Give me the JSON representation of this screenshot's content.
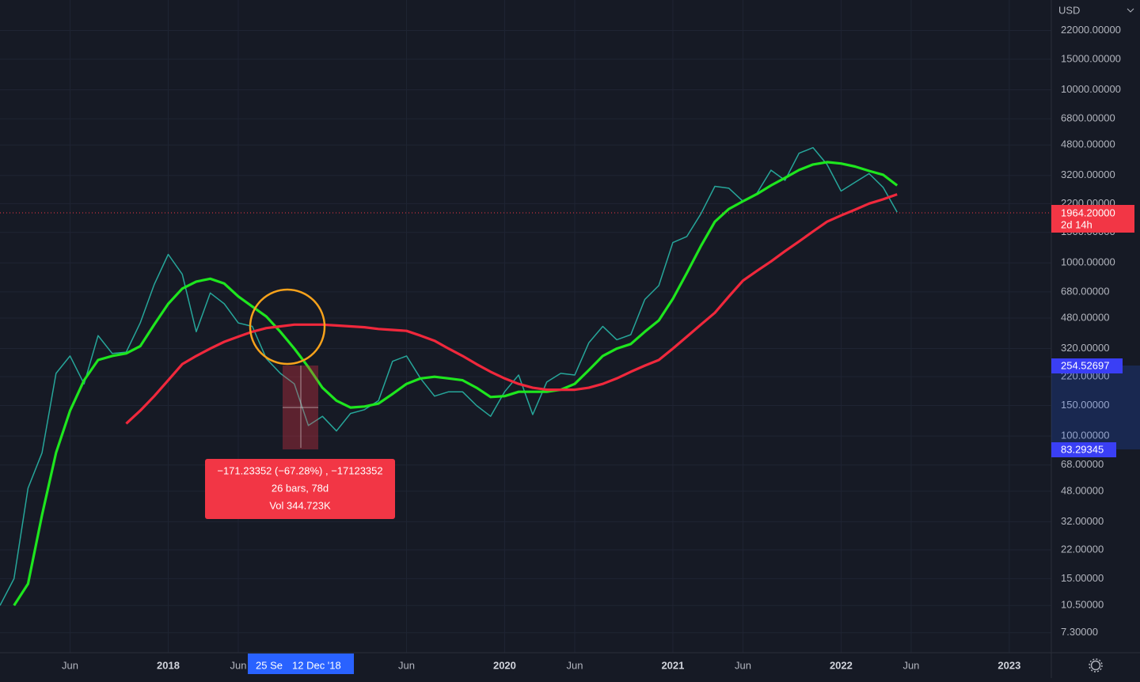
{
  "chart_data": {
    "type": "line",
    "log_scale": true,
    "grid": true,
    "x": [
      "2017-01",
      "2017-02",
      "2017-03",
      "2017-04",
      "2017-05",
      "2017-06",
      "2017-07",
      "2017-08",
      "2017-09",
      "2017-10",
      "2017-11",
      "2017-12",
      "2018-01",
      "2018-02",
      "2018-03",
      "2018-04",
      "2018-05",
      "2018-06",
      "2018-07",
      "2018-08",
      "2018-09",
      "2018-10",
      "2018-11",
      "2018-12",
      "2019-01",
      "2019-02",
      "2019-03",
      "2019-04",
      "2019-05",
      "2019-06",
      "2019-07",
      "2019-08",
      "2019-09",
      "2019-10",
      "2019-11",
      "2019-12",
      "2020-01",
      "2020-02",
      "2020-03",
      "2020-04",
      "2020-05",
      "2020-06",
      "2020-07",
      "2020-08",
      "2020-09",
      "2020-10",
      "2020-11",
      "2020-12",
      "2021-01",
      "2021-02",
      "2021-03",
      "2021-04",
      "2021-05",
      "2021-06",
      "2021-07",
      "2021-08",
      "2021-09",
      "2021-10",
      "2021-11",
      "2021-12",
      "2022-01",
      "2022-02",
      "2022-03",
      "2022-04",
      "2022-05"
    ],
    "series": [
      {
        "color": "#26a69a",
        "values": [
          10.5,
          15,
          50,
          80,
          230,
          290,
          200,
          380,
          300,
          305,
          450,
          750,
          1120,
          860,
          400,
          670,
          580,
          450,
          430,
          280,
          230,
          200,
          115,
          130,
          107,
          135,
          142,
          160,
          270,
          290,
          215,
          170,
          180,
          180,
          150,
          130,
          180,
          225,
          133,
          205,
          230,
          225,
          345,
          430,
          360,
          385,
          615,
          740,
          1310,
          1420,
          1920,
          2770,
          2700,
          2270,
          2530,
          3430,
          3000,
          4300,
          4630,
          3700,
          2600,
          2920,
          3280,
          2730,
          1964
        ]
      },
      {
        "color": "#1ee61e",
        "values": [
          null,
          10.5,
          14,
          35,
          80,
          140,
          210,
          275,
          290,
          300,
          330,
          440,
          580,
          710,
          780,
          810,
          760,
          640,
          560,
          490,
          400,
          320,
          250,
          190,
          160,
          146,
          148,
          154,
          175,
          200,
          215,
          220,
          215,
          210,
          190,
          168,
          170,
          180,
          180,
          180,
          185,
          200,
          240,
          290,
          320,
          340,
          400,
          465,
          620,
          875,
          1250,
          1730,
          2050,
          2270,
          2500,
          2800,
          3100,
          3440,
          3700,
          3820,
          3750,
          3600,
          3400,
          3230,
          2800
        ]
      },
      {
        "color": "#f0283c",
        "values": [
          null,
          null,
          null,
          null,
          null,
          null,
          null,
          null,
          null,
          118,
          140,
          170,
          210,
          260,
          290,
          320,
          350,
          375,
          400,
          420,
          430,
          440,
          440,
          440,
          435,
          430,
          425,
          415,
          410,
          405,
          380,
          355,
          320,
          290,
          260,
          235,
          215,
          200,
          190,
          185,
          185,
          185,
          190,
          200,
          215,
          235,
          255,
          275,
          320,
          375,
          440,
          515,
          640,
          790,
          900,
          1020,
          1170,
          1330,
          1520,
          1730,
          1880,
          2030,
          2200,
          2330,
          2490
        ]
      }
    ],
    "xlim": [
      "2017-01",
      "2023-04"
    ],
    "xticks": [
      {
        "value": "2017-06",
        "label": "Jun"
      },
      {
        "value": "2018-01",
        "label": "2018"
      },
      {
        "value": "2018-06",
        "label": "Jun"
      },
      {
        "value": "2019-06",
        "label": "Jun"
      },
      {
        "value": "2020-01",
        "label": "2020"
      },
      {
        "value": "2020-06",
        "label": "Jun"
      },
      {
        "value": "2021-01",
        "label": "2021"
      },
      {
        "value": "2021-06",
        "label": "Jun"
      },
      {
        "value": "2022-01",
        "label": "2022"
      },
      {
        "value": "2022-06",
        "label": "Jun"
      },
      {
        "value": "2023-01",
        "label": "2023"
      }
    ],
    "ylim": [
      5.6,
      33000
    ],
    "yticks": [
      {
        "value": 22000,
        "label": "22000.00000"
      },
      {
        "value": 15000,
        "label": "15000.00000"
      },
      {
        "value": 10000,
        "label": "10000.00000"
      },
      {
        "value": 6800,
        "label": "6800.00000"
      },
      {
        "value": 4800,
        "label": "4800.00000"
      },
      {
        "value": 3200,
        "label": "3200.00000"
      },
      {
        "value": 2200,
        "label": "2200.00000"
      },
      {
        "value": 1500,
        "label": "1500.00000"
      },
      {
        "value": 1000,
        "label": "1000.00000"
      },
      {
        "value": 680,
        "label": "680.00000"
      },
      {
        "value": 480,
        "label": "480.00000"
      },
      {
        "value": 320,
        "label": "320.00000"
      },
      {
        "value": 220,
        "label": "220.00000"
      },
      {
        "value": 150,
        "label": "150.00000"
      },
      {
        "value": 100,
        "label": "100.00000"
      },
      {
        "value": 68,
        "label": "68.00000"
      },
      {
        "value": 48,
        "label": "48.00000"
      },
      {
        "value": 32,
        "label": "32.00000"
      },
      {
        "value": 22,
        "label": "22.00000"
      },
      {
        "value": 15,
        "label": "15.00000"
      },
      {
        "value": 10.5,
        "label": "10.50000"
      },
      {
        "value": 7.3,
        "label": "7.30000"
      }
    ]
  },
  "ui": {
    "currency": "USD",
    "last_price": "1964.20000",
    "countdown": "2d 14h",
    "range_high": "254.52697",
    "range_low": "83.29345",
    "range_start": "25 Se",
    "range_end": "12 Dec '18",
    "measure": [
      "−171.23352 (−67.28%) , −17123352",
      "26 bars, 78d",
      "Vol 344.723K"
    ]
  }
}
